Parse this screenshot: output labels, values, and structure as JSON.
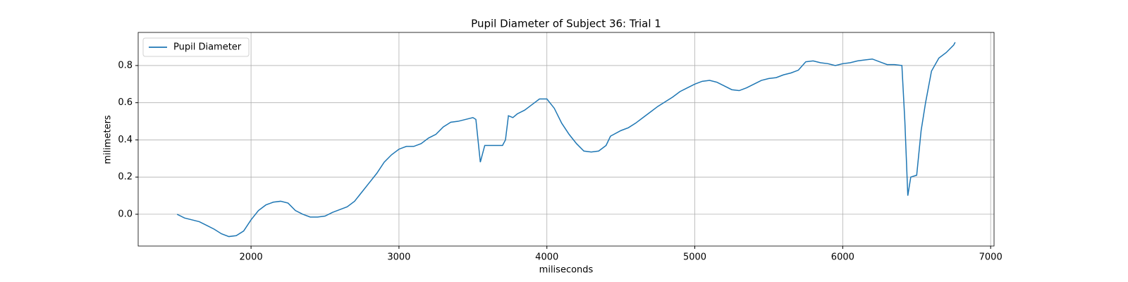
{
  "chart_data": {
    "type": "line",
    "title": "Pupil Diameter of Subject 36: Trial 1",
    "x_label": "miliseconds",
    "y_label": "milimeters",
    "x": [
      1500,
      1550,
      1600,
      1650,
      1700,
      1750,
      1800,
      1850,
      1900,
      1950,
      2000,
      2050,
      2100,
      2150,
      2200,
      2250,
      2300,
      2350,
      2400,
      2450,
      2500,
      2550,
      2600,
      2650,
      2700,
      2750,
      2800,
      2850,
      2900,
      2950,
      3000,
      3050,
      3100,
      3150,
      3200,
      3250,
      3300,
      3350,
      3400,
      3450,
      3500,
      3520,
      3550,
      3580,
      3650,
      3700,
      3720,
      3740,
      3770,
      3800,
      3850,
      3900,
      3950,
      4000,
      4050,
      4100,
      4150,
      4200,
      4250,
      4300,
      4350,
      4400,
      4430,
      4500,
      4550,
      4600,
      4650,
      4700,
      4750,
      4800,
      4850,
      4900,
      4950,
      5000,
      5050,
      5100,
      5150,
      5200,
      5250,
      5300,
      5350,
      5400,
      5450,
      5500,
      5550,
      5600,
      5650,
      5700,
      5750,
      5800,
      5850,
      5900,
      5950,
      6000,
      6050,
      6100,
      6150,
      6200,
      6250,
      6300,
      6350,
      6400,
      6420,
      6440,
      6460,
      6500,
      6530,
      6560,
      6600,
      6650,
      6700,
      6750,
      6760
    ],
    "series": [
      {
        "name": "Pupil Diameter",
        "color": "#1f77b4",
        "values": [
          0.0,
          -0.02,
          -0.03,
          -0.04,
          -0.06,
          -0.08,
          -0.105,
          -0.12,
          -0.115,
          -0.09,
          -0.03,
          0.02,
          0.05,
          0.065,
          0.07,
          0.06,
          0.02,
          0.0,
          -0.015,
          -0.015,
          -0.01,
          0.01,
          0.025,
          0.04,
          0.07,
          0.12,
          0.17,
          0.22,
          0.28,
          0.32,
          0.35,
          0.365,
          0.365,
          0.38,
          0.41,
          0.43,
          0.47,
          0.495,
          0.5,
          0.51,
          0.52,
          0.51,
          0.28,
          0.37,
          0.37,
          0.37,
          0.4,
          0.53,
          0.52,
          0.54,
          0.56,
          0.59,
          0.62,
          0.62,
          0.57,
          0.49,
          0.43,
          0.38,
          0.34,
          0.335,
          0.34,
          0.37,
          0.42,
          0.45,
          0.465,
          0.49,
          0.52,
          0.55,
          0.58,
          0.605,
          0.63,
          0.66,
          0.68,
          0.7,
          0.715,
          0.72,
          0.71,
          0.69,
          0.67,
          0.665,
          0.68,
          0.7,
          0.72,
          0.73,
          0.735,
          0.75,
          0.76,
          0.775,
          0.82,
          0.825,
          0.815,
          0.81,
          0.8,
          0.81,
          0.815,
          0.825,
          0.83,
          0.835,
          0.82,
          0.805,
          0.805,
          0.8,
          0.5,
          0.1,
          0.2,
          0.21,
          0.45,
          0.6,
          0.77,
          0.84,
          0.87,
          0.91,
          0.925
        ]
      }
    ],
    "xlim": [
      1237,
      7023
    ],
    "xticks": [
      2000,
      3000,
      4000,
      5000,
      6000,
      7000
    ],
    "ylim": [
      -0.171,
      0.978
    ],
    "yticks": [
      {
        "value": 0,
        "label": "0.0"
      },
      0.2,
      0.4,
      0.6,
      0.8
    ],
    "grid": true,
    "legend": "upper left"
  }
}
